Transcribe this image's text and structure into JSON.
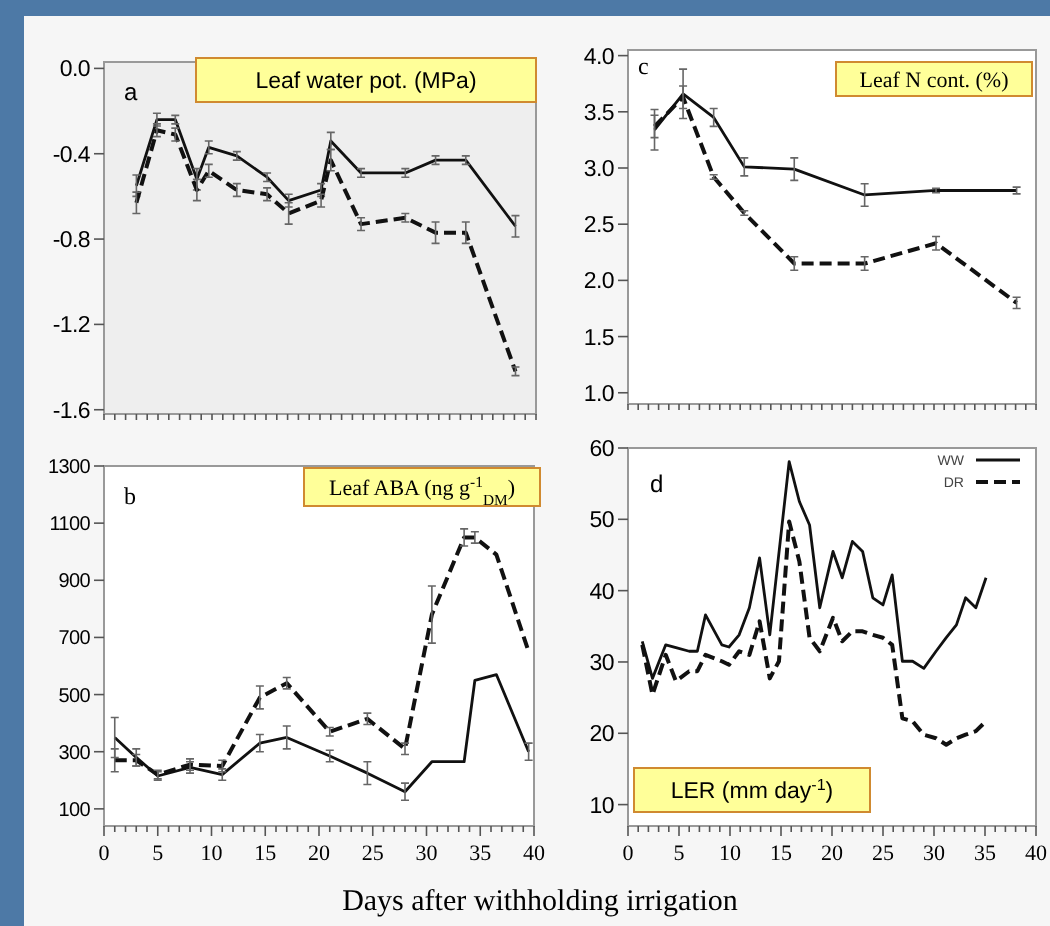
{
  "chart_data": [
    {
      "type": "line",
      "title": "Leaf water pot. (MPa)",
      "annotations": [
        "a"
      ],
      "xlim": [
        0,
        40
      ],
      "ylim": [
        -1.62,
        0.03
      ],
      "yticks": [
        {
          "value": 0,
          "label": "0.0"
        },
        {
          "value": -0.4,
          "label": "-0.4"
        },
        {
          "value": -0.8,
          "label": "-0.8"
        },
        {
          "value": -1.2,
          "label": "-1.2"
        },
        {
          "value": -1.6,
          "label": "-1.6"
        }
      ],
      "xticks": [
        {
          "value": 0,
          "label": null
        },
        {
          "value": 1,
          "label": null
        },
        {
          "value": 2,
          "label": null
        },
        {
          "value": 3,
          "label": null
        },
        {
          "value": 4,
          "label": null
        },
        {
          "value": 5,
          "label": null
        },
        {
          "value": 6,
          "label": null
        },
        {
          "value": 7,
          "label": null
        },
        {
          "value": 8,
          "label": null
        },
        {
          "value": 9,
          "label": null
        },
        {
          "value": 10,
          "label": null
        },
        {
          "value": 11,
          "label": null
        },
        {
          "value": 12,
          "label": null
        },
        {
          "value": 13,
          "label": null
        },
        {
          "value": 14,
          "label": null
        },
        {
          "value": 15,
          "label": null
        },
        {
          "value": 16,
          "label": null
        },
        {
          "value": 17,
          "label": null
        },
        {
          "value": 18,
          "label": null
        },
        {
          "value": 19,
          "label": null
        },
        {
          "value": 20,
          "label": null
        },
        {
          "value": 21,
          "label": null
        },
        {
          "value": 22,
          "label": null
        },
        {
          "value": 23,
          "label": null
        },
        {
          "value": 24,
          "label": null
        },
        {
          "value": 25,
          "label": null
        },
        {
          "value": 26,
          "label": null
        },
        {
          "value": 27,
          "label": null
        },
        {
          "value": 28,
          "label": null
        },
        {
          "value": 29,
          "label": null
        },
        {
          "value": 30,
          "label": null
        },
        {
          "value": 31,
          "label": null
        },
        {
          "value": 32,
          "label": null
        },
        {
          "value": 33,
          "label": null
        },
        {
          "value": 34,
          "label": null
        },
        {
          "value": 35,
          "label": null
        },
        {
          "value": 36,
          "label": null
        },
        {
          "value": 37,
          "label": null
        },
        {
          "value": 38,
          "label": null
        },
        {
          "value": 39,
          "label": null
        },
        {
          "value": 40,
          "label": null
        }
      ],
      "tick_labels": "y",
      "series": [
        {
          "color": "#111111",
          "line_style": "solid",
          "x": [
            3,
            4.9,
            6.6,
            8.6,
            9.7,
            12.3,
            15.1,
            17.1,
            20.1,
            21,
            23.8,
            27.9,
            30.7,
            33.5,
            38.1
          ],
          "values": [
            -0.55,
            -0.24,
            -0.24,
            -0.52,
            -0.37,
            -0.41,
            -0.51,
            -0.62,
            -0.57,
            -0.34,
            -0.49,
            -0.49,
            -0.43,
            -0.43,
            -0.74
          ],
          "errors": [
            0.05,
            0.03,
            0.02,
            0.05,
            0.03,
            0.02,
            0.02,
            0.03,
            0.03,
            0.04,
            0.02,
            0.02,
            0.02,
            0.02,
            0.05
          ]
        },
        {
          "color": "#111111",
          "line_style": "dashed",
          "x": [
            3,
            4.9,
            6.6,
            8.6,
            9.7,
            12.3,
            15.1,
            17.1,
            20.1,
            21,
            23.8,
            27.9,
            30.7,
            33.5,
            38.1
          ],
          "values": [
            -0.63,
            -0.29,
            -0.31,
            -0.57,
            -0.48,
            -0.57,
            -0.59,
            -0.68,
            -0.62,
            -0.43,
            -0.73,
            -0.7,
            -0.77,
            -0.77,
            -1.42
          ],
          "errors": [
            0.05,
            0.03,
            0.03,
            0.05,
            0.03,
            0.03,
            0.03,
            0.05,
            0.03,
            0.05,
            0.03,
            0.02,
            0.05,
            0.05,
            0.02
          ]
        }
      ]
    },
    {
      "type": "line",
      "title": "Leaf N cont.  (%)",
      "annotations": [
        "c"
      ],
      "xlim": [
        0,
        40
      ],
      "ylim": [
        0.9,
        4.05
      ],
      "yticks": [
        {
          "value": 1,
          "label": "1.0"
        },
        {
          "value": 1.5,
          "label": "1.5"
        },
        {
          "value": 2,
          "label": "2.0"
        },
        {
          "value": 2.5,
          "label": "2.5"
        },
        {
          "value": 3,
          "label": "3.0"
        },
        {
          "value": 3.5,
          "label": "3.5"
        },
        {
          "value": 4,
          "label": "4.0"
        }
      ],
      "xticks": [
        {
          "value": 0,
          "label": null
        },
        {
          "value": 1,
          "label": null
        },
        {
          "value": 2,
          "label": null
        },
        {
          "value": 3,
          "label": null
        },
        {
          "value": 4,
          "label": null
        },
        {
          "value": 5,
          "label": null
        },
        {
          "value": 6,
          "label": null
        },
        {
          "value": 7,
          "label": null
        },
        {
          "value": 8,
          "label": null
        },
        {
          "value": 9,
          "label": null
        },
        {
          "value": 10,
          "label": null
        },
        {
          "value": 11,
          "label": null
        },
        {
          "value": 12,
          "label": null
        },
        {
          "value": 13,
          "label": null
        },
        {
          "value": 14,
          "label": null
        },
        {
          "value": 15,
          "label": null
        },
        {
          "value": 16,
          "label": null
        },
        {
          "value": 17,
          "label": null
        },
        {
          "value": 18,
          "label": null
        },
        {
          "value": 19,
          "label": null
        },
        {
          "value": 20,
          "label": null
        },
        {
          "value": 21,
          "label": null
        },
        {
          "value": 22,
          "label": null
        },
        {
          "value": 23,
          "label": null
        },
        {
          "value": 24,
          "label": null
        },
        {
          "value": 25,
          "label": null
        },
        {
          "value": 26,
          "label": null
        },
        {
          "value": 27,
          "label": null
        },
        {
          "value": 28,
          "label": null
        },
        {
          "value": 29,
          "label": null
        },
        {
          "value": 30,
          "label": null
        },
        {
          "value": 31,
          "label": null
        },
        {
          "value": 32,
          "label": null
        },
        {
          "value": 33,
          "label": null
        },
        {
          "value": 34,
          "label": null
        },
        {
          "value": 35,
          "label": null
        },
        {
          "value": 36,
          "label": null
        },
        {
          "value": 37,
          "label": null
        },
        {
          "value": 38,
          "label": null
        },
        {
          "value": 39,
          "label": null
        },
        {
          "value": 40,
          "label": null
        }
      ],
      "tick_labels": "y",
      "series": [
        {
          "color": "#111111",
          "line_style": "solid",
          "x": [
            2.6,
            5.4,
            8.4,
            11.4,
            16.3,
            23.2,
            30.2,
            38.1
          ],
          "values": [
            3.34,
            3.66,
            3.45,
            3.01,
            2.99,
            2.76,
            2.8,
            2.8
          ],
          "errors": [
            0.18,
            0.22,
            0.08,
            0.08,
            0.1,
            0.1,
            0.02,
            0.03
          ]
        },
        {
          "color": "#111111",
          "line_style": "dashed",
          "x": [
            2.6,
            5.4,
            8.4,
            11.4,
            16.3,
            23.2,
            30.2,
            38.1
          ],
          "values": [
            3.37,
            3.63,
            2.92,
            2.6,
            2.15,
            2.15,
            2.33,
            1.8
          ],
          "errors": [
            0.1,
            0.1,
            0.02,
            0.02,
            0.06,
            0.06,
            0.06,
            0.05
          ]
        }
      ]
    },
    {
      "type": "line",
      "title": "Leaf ABA (ng g$^{-1}$$_{DM}$)",
      "annotations": [
        "b"
      ],
      "xlabel": "Days after withholding irrigation",
      "xlim": [
        0,
        40
      ],
      "ylim": [
        40,
        1300
      ],
      "yticks": [
        100,
        300,
        500,
        700,
        900,
        1100,
        1300
      ],
      "xticks": [
        0,
        {
          "value": 1,
          "label": null
        },
        {
          "value": 2,
          "label": null
        },
        {
          "value": 3,
          "label": null
        },
        {
          "value": 4,
          "label": null
        },
        5,
        {
          "value": 6,
          "label": null
        },
        {
          "value": 7,
          "label": null
        },
        {
          "value": 8,
          "label": null
        },
        {
          "value": 9,
          "label": null
        },
        10,
        {
          "value": 11,
          "label": null
        },
        {
          "value": 12,
          "label": null
        },
        {
          "value": 13,
          "label": null
        },
        {
          "value": 14,
          "label": null
        },
        15,
        {
          "value": 16,
          "label": null
        },
        {
          "value": 17,
          "label": null
        },
        {
          "value": 18,
          "label": null
        },
        {
          "value": 19,
          "label": null
        },
        20,
        {
          "value": 21,
          "label": null
        },
        {
          "value": 22,
          "label": null
        },
        {
          "value": 23,
          "label": null
        },
        {
          "value": 24,
          "label": null
        },
        25,
        {
          "value": 26,
          "label": null
        },
        {
          "value": 27,
          "label": null
        },
        {
          "value": 28,
          "label": null
        },
        {
          "value": 29,
          "label": null
        },
        30,
        {
          "value": 31,
          "label": null
        },
        {
          "value": 32,
          "label": null
        },
        {
          "value": 33,
          "label": null
        },
        {
          "value": 34,
          "label": null
        },
        35,
        {
          "value": 36,
          "label": null
        },
        {
          "value": 37,
          "label": null
        },
        {
          "value": 38,
          "label": null
        },
        {
          "value": 39,
          "label": null
        },
        40
      ],
      "series": [
        {
          "color": "#111111",
          "line_style": "solid",
          "x": [
            1,
            3,
            5,
            8,
            11,
            14.5,
            17,
            21,
            24.5,
            28,
            30.5,
            33.5,
            34.5,
            36.5,
            39.5
          ],
          "values": [
            350,
            280,
            215,
            245,
            220,
            330,
            350,
            285,
            225,
            160,
            265,
            265,
            550,
            570,
            300
          ],
          "errors": [
            70,
            30,
            15,
            20,
            20,
            30,
            40,
            20,
            40,
            30,
            null,
            null,
            null,
            null,
            30
          ]
        },
        {
          "color": "#111111",
          "line_style": "dashed",
          "x": [
            1,
            3,
            5,
            8,
            11,
            14.5,
            17,
            21,
            24.5,
            28,
            30.5,
            33.5,
            34.5,
            36.5,
            39.5
          ],
          "values": [
            270,
            270,
            220,
            255,
            250,
            490,
            540,
            370,
            415,
            310,
            780,
            1050,
            1050,
            990,
            650
          ],
          "errors": [
            40,
            20,
            15,
            20,
            20,
            40,
            20,
            15,
            20,
            20,
            100,
            30,
            20,
            null,
            null
          ]
        }
      ]
    },
    {
      "type": "line",
      "title": "LER (mm day$^{-1}$)",
      "annotations": [
        "d"
      ],
      "xlim": [
        0,
        40
      ],
      "ylim": [
        7,
        60
      ],
      "legend": "top right",
      "yticks": [
        10,
        20,
        30,
        40,
        50,
        60
      ],
      "xticks": [
        0,
        {
          "value": 1,
          "label": null
        },
        {
          "value": 2,
          "label": null
        },
        {
          "value": 3,
          "label": null
        },
        {
          "value": 4,
          "label": null
        },
        5,
        {
          "value": 6,
          "label": null
        },
        {
          "value": 7,
          "label": null
        },
        {
          "value": 8,
          "label": null
        },
        {
          "value": 9,
          "label": null
        },
        10,
        {
          "value": 11,
          "label": null
        },
        {
          "value": 12,
          "label": null
        },
        {
          "value": 13,
          "label": null
        },
        {
          "value": 14,
          "label": null
        },
        15,
        {
          "value": 16,
          "label": null
        },
        {
          "value": 17,
          "label": null
        },
        {
          "value": 18,
          "label": null
        },
        {
          "value": 19,
          "label": null
        },
        20,
        {
          "value": 21,
          "label": null
        },
        {
          "value": 22,
          "label": null
        },
        {
          "value": 23,
          "label": null
        },
        {
          "value": 24,
          "label": null
        },
        25,
        {
          "value": 26,
          "label": null
        },
        {
          "value": 27,
          "label": null
        },
        {
          "value": 28,
          "label": null
        },
        {
          "value": 29,
          "label": null
        },
        30,
        {
          "value": 31,
          "label": null
        },
        {
          "value": 32,
          "label": null
        },
        {
          "value": 33,
          "label": null
        },
        {
          "value": 34,
          "label": null
        },
        35,
        {
          "value": 36,
          "label": null
        },
        {
          "value": 37,
          "label": null
        },
        {
          "value": 38,
          "label": null
        },
        {
          "value": 39,
          "label": null
        },
        40
      ],
      "series": [
        {
          "name": "WW",
          "color": "#111111",
          "line_style": "solid",
          "x": [
            1.4,
            2.4,
            3.7,
            4.7,
            6,
            6.8,
            7.6,
            9.2,
            9.9,
            10.9,
            11.9,
            12.9,
            13.9,
            15.8,
            16.8,
            17.8,
            18.8,
            20.1,
            21,
            22,
            23,
            24,
            25,
            25.9,
            26.9,
            27.9,
            29,
            30.2,
            31.2,
            32.2,
            33.1,
            34.1,
            35.1
          ],
          "values": [
            32.9,
            27.7,
            32.4,
            32,
            31.5,
            31.5,
            36.6,
            32.4,
            32.1,
            33.8,
            37.6,
            44.6,
            33.8,
            58.1,
            52.5,
            49.2,
            37.6,
            45.5,
            41.8,
            46.9,
            45.5,
            39,
            38,
            42.2,
            30.1,
            30.1,
            29.1,
            31.5,
            33.4,
            35.2,
            39,
            37.6,
            41.8
          ]
        },
        {
          "name": "DR",
          "color": "#111111",
          "line_style": "dashed",
          "x": [
            1.4,
            2.4,
            3.7,
            4.7,
            6,
            6.8,
            7.6,
            9.2,
            9.9,
            10.9,
            11.9,
            12.9,
            13.9,
            14.8,
            15.8,
            16.8,
            17.8,
            18.8,
            20.1,
            21,
            22,
            23,
            24,
            25,
            25.9,
            26.9,
            27.9,
            29,
            30.2,
            31.2,
            32.2,
            33.1,
            34.1,
            35.1
          ],
          "values": [
            32.4,
            25.4,
            31,
            27.3,
            28.7,
            28.7,
            31,
            30.1,
            29.6,
            31.5,
            31,
            35.7,
            27.7,
            30.1,
            49.7,
            44.1,
            33.4,
            31.5,
            36.2,
            32.9,
            34.3,
            34.3,
            33.8,
            33.4,
            32.4,
            22.1,
            21.7,
            19.8,
            19.3,
            18.4,
            19.3,
            19.8,
            20.3,
            21.7
          ]
        }
      ]
    }
  ]
}
